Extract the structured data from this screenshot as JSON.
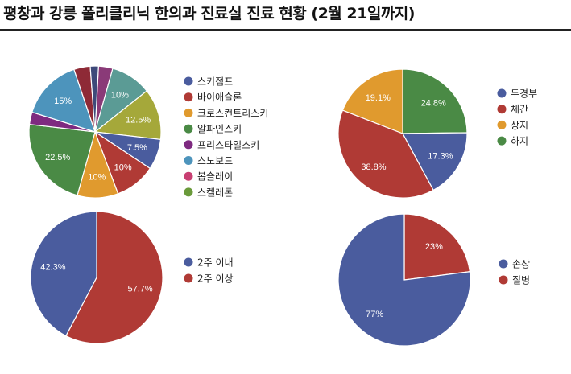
{
  "title": "평창과 강릉 폴리클리닉 한의과 진료실 진료 현황 (2월 21일까지)",
  "chart_data": [
    {
      "type": "pie",
      "legend_position": "right",
      "start_angle_deg": 3,
      "categories": [
        "스키점프",
        "바이애슬론",
        "크로스컨트리스키",
        "알파인스키",
        "프리스타일스키",
        "스노보드",
        "봅슬레이",
        "스켈레톤"
      ],
      "slices": [
        {
          "label": "",
          "value": 3.5,
          "color": "#8a3a78",
          "show_label": false
        },
        {
          "label": "",
          "value": 10,
          "color": "#5b9b95",
          "text": "10%",
          "show_label": true
        },
        {
          "label": "",
          "value": 12.5,
          "color": "#a5a83a",
          "text": "12.5%",
          "show_label": true
        },
        {
          "label": "스키점프",
          "value": 7.5,
          "color": "#4a5c9e",
          "text": "7.5%",
          "show_label": true
        },
        {
          "label": "바이애슬론",
          "value": 10,
          "color": "#b03a35",
          "text": "10%",
          "show_label": true
        },
        {
          "label": "크로스컨트리스키",
          "value": 10,
          "color": "#e09a2e",
          "text": "10%",
          "show_label": true
        },
        {
          "label": "알파인스키",
          "value": 22.5,
          "color": "#4a8a45",
          "text": "22.5%",
          "show_label": true
        },
        {
          "label": "프리스타일스키",
          "value": 3,
          "color": "#7e2a80",
          "show_label": false
        },
        {
          "label": "스노보드",
          "value": 15,
          "color": "#4d94bc",
          "text": "15%",
          "show_label": true
        },
        {
          "label": "",
          "value": 4,
          "color": "#8e2a36",
          "show_label": false
        },
        {
          "label": "",
          "value": 2,
          "color": "#3e4a7a",
          "show_label": false
        }
      ],
      "legend": [
        {
          "label": "스키점프",
          "color": "#4a5c9e"
        },
        {
          "label": "바이애슬론",
          "color": "#b03a35"
        },
        {
          "label": "크로스컨트리스키",
          "color": "#e09a2e"
        },
        {
          "label": "알파인스키",
          "color": "#4a8a45"
        },
        {
          "label": "프리스타일스키",
          "color": "#7e2a80"
        },
        {
          "label": "스노보드",
          "color": "#4d94bc"
        },
        {
          "label": "봅슬레이",
          "color": "#c83f72"
        },
        {
          "label": "스켈레톤",
          "color": "#6a9a3a"
        }
      ]
    },
    {
      "type": "pie",
      "legend_position": "right",
      "start_angle_deg": 0,
      "slices": [
        {
          "label": "하지",
          "value": 24.8,
          "color": "#4a8a45",
          "text": "24.8%",
          "show_label": true
        },
        {
          "label": "두경부",
          "value": 17.3,
          "color": "#4a5c9e",
          "text": "17.3%",
          "show_label": true
        },
        {
          "label": "체간",
          "value": 38.8,
          "color": "#b03a35",
          "text": "38.8%",
          "show_label": true
        },
        {
          "label": "상지",
          "value": 19.1,
          "color": "#e09a2e",
          "text": "19.1%",
          "show_label": true
        }
      ],
      "legend": [
        {
          "label": "두경부",
          "color": "#4a5c9e"
        },
        {
          "label": "체간",
          "color": "#b03a35"
        },
        {
          "label": "상지",
          "color": "#e09a2e"
        },
        {
          "label": "하지",
          "color": "#4a8a45"
        }
      ]
    },
    {
      "type": "pie",
      "legend_position": "right",
      "start_angle_deg": 0,
      "slices": [
        {
          "label": "2주 이상",
          "value": 57.7,
          "color": "#b03a35",
          "text": "57.7%",
          "show_label": true
        },
        {
          "label": "2주 이내",
          "value": 42.3,
          "color": "#4a5c9e",
          "text": "42.3%",
          "show_label": true
        }
      ],
      "legend": [
        {
          "label": "2주 이내",
          "color": "#4a5c9e"
        },
        {
          "label": "2주 이상",
          "color": "#b03a35"
        }
      ]
    },
    {
      "type": "pie",
      "legend_position": "right",
      "start_angle_deg": 0,
      "slices": [
        {
          "label": "질병",
          "value": 23,
          "color": "#b03a35",
          "text": "23%",
          "show_label": true
        },
        {
          "label": "손상",
          "value": 77,
          "color": "#4a5c9e",
          "text": "77%",
          "show_label": true
        }
      ],
      "legend": [
        {
          "label": "손상",
          "color": "#4a5c9e"
        },
        {
          "label": "질병",
          "color": "#b03a35"
        }
      ]
    }
  ]
}
